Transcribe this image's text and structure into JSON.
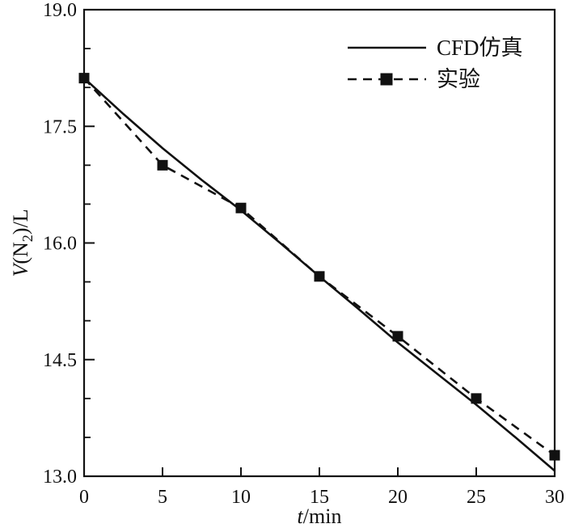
{
  "colors": {
    "background": "#ffffff",
    "foreground": "#111111"
  },
  "chart_data": {
    "type": "line",
    "title": "",
    "xlabel": "t/min",
    "xlabel_parts": [
      {
        "text": "t",
        "italic": true
      },
      {
        "text": "/min",
        "italic": false
      }
    ],
    "ylabel": "V(N2)/L",
    "ylabel_parts": [
      {
        "text": "V",
        "italic": true
      },
      {
        "text": "(N",
        "italic": false
      },
      {
        "text": "2",
        "sub": true
      },
      {
        "text": ")/L",
        "italic": false
      }
    ],
    "xlim": [
      0,
      30
    ],
    "ylim": [
      13.0,
      19.0
    ],
    "xticks": {
      "values": [
        0,
        5,
        10,
        15,
        20,
        25,
        30
      ],
      "labels": [
        "0",
        "5",
        "10",
        "15",
        "20",
        "25",
        "30"
      ]
    },
    "yticks": {
      "values": [
        13.0,
        14.5,
        16.0,
        17.5,
        19.0
      ],
      "labels": [
        "13.0",
        "14.5",
        "16.0",
        "17.5",
        "19.0"
      ],
      "minor_step": 0.5
    },
    "grid": false,
    "legend_position": "top-right-inside",
    "series": [
      {
        "name": "CFD仿真",
        "type": "line",
        "style": "solid",
        "marker": "none",
        "color": "#111111",
        "x": [
          0,
          2.5,
          5,
          7.5,
          10,
          12.5,
          15,
          17.5,
          20,
          22.5,
          25,
          27.5,
          30
        ],
        "values": [
          18.12,
          17.66,
          17.22,
          16.81,
          16.42,
          16.0,
          15.57,
          15.15,
          14.72,
          14.32,
          13.92,
          13.5,
          13.07
        ]
      },
      {
        "name": "实验",
        "type": "line",
        "style": "dashed",
        "marker": "square",
        "color": "#111111",
        "x": [
          0,
          5,
          10,
          15,
          20,
          25,
          30
        ],
        "values": [
          18.12,
          17.0,
          16.45,
          15.57,
          14.8,
          14.0,
          13.27
        ]
      }
    ]
  }
}
